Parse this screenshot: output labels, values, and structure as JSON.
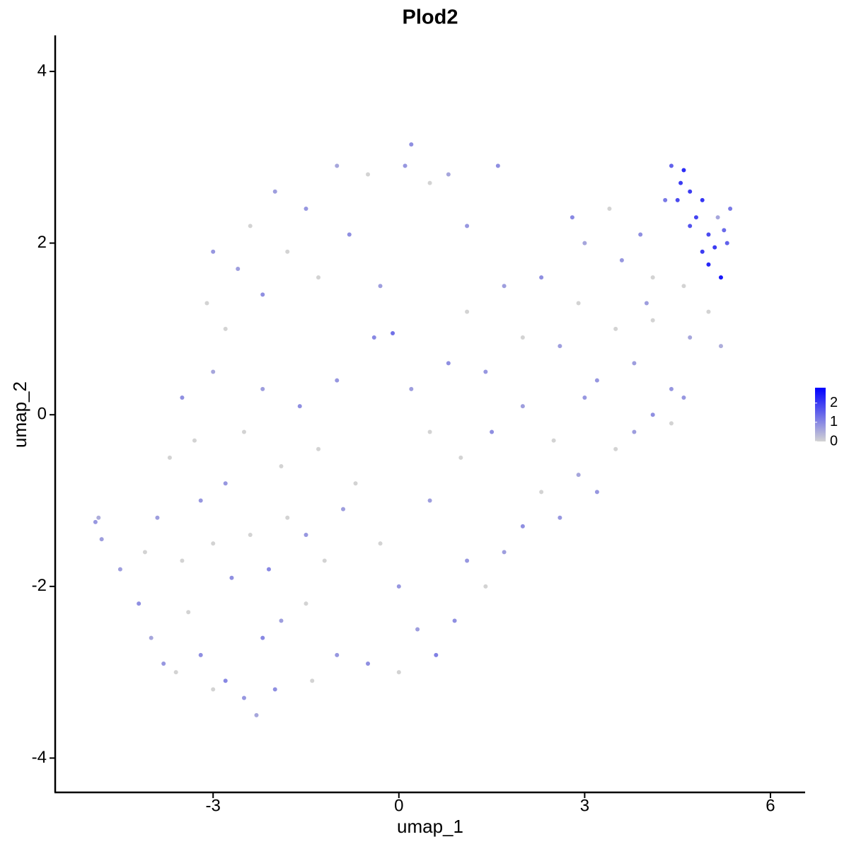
{
  "chart_data": {
    "type": "scatter",
    "title": "Plod2",
    "xlabel": "umap_1",
    "ylabel": "umap_2",
    "xlim": [
      -5.55,
      6.56
    ],
    "ylim": [
      -4.4,
      4.42
    ],
    "xticks": [
      -3,
      0,
      3,
      6
    ],
    "yticks": [
      -4,
      -2,
      0,
      2,
      4
    ],
    "colorbar": {
      "lim": [
        0,
        2.8
      ],
      "ticks": [
        0,
        1,
        2
      ],
      "low": "#d3d3d3",
      "high": "#0000ff"
    },
    "x": [
      -4.9,
      -4.85,
      -4.8,
      -4.5,
      -4.2,
      -4.0,
      -3.8,
      -3.6,
      -3.4,
      -3.2,
      -3.0,
      -2.8,
      -2.5,
      -2.3,
      -2.0,
      -2.2,
      -1.9,
      -1.5,
      -1.4,
      -1.0,
      -4.1,
      -3.9,
      -3.5,
      -3.2,
      -3.0,
      -2.7,
      -2.4,
      -2.1,
      -1.8,
      -1.5,
      -1.2,
      -0.9,
      -3.7,
      -3.5,
      -3.3,
      -3.0,
      -2.8,
      -2.5,
      -2.2,
      -1.9,
      -1.6,
      -1.3,
      -1.0,
      -0.7,
      -3.1,
      -3.0,
      -2.8,
      -2.6,
      -2.4,
      -2.2,
      -2.0,
      -1.8,
      -1.5,
      -1.3,
      -1.0,
      -0.8,
      -0.5,
      -0.3,
      0.1,
      0.2,
      0.5,
      0.8,
      1.1,
      1.6,
      -0.4,
      -0.1,
      0.2,
      0.5,
      0.8,
      1.1,
      1.4,
      1.7,
      2.0,
      2.3,
      2.6,
      2.9,
      3.2,
      3.5,
      3.8,
      4.1,
      4.4,
      4.7,
      5.0,
      5.2,
      -0.3,
      0.0,
      0.3,
      -0.5,
      0.0,
      0.6,
      0.9,
      1.1,
      1.4,
      1.7,
      2.0,
      2.3,
      2.6,
      2.9,
      3.2,
      3.5,
      3.8,
      4.1,
      4.4,
      4.6,
      0.5,
      1.0,
      1.5,
      2.0,
      2.5,
      3.0,
      2.8,
      3.0,
      3.4,
      3.6,
      3.9,
      4.1,
      4.3,
      4.4,
      4.5,
      4.6,
      4.7,
      4.8,
      4.9,
      5.0,
      4.9,
      5.0,
      5.1,
      5.2,
      5.3,
      5.35,
      4.7,
      5.25,
      4.55,
      5.15,
      4.0,
      4.6
    ],
    "y": [
      -1.25,
      -1.2,
      -1.45,
      -1.8,
      -2.2,
      -2.6,
      -2.9,
      -3.0,
      -2.3,
      -2.8,
      -3.2,
      -3.1,
      -3.3,
      -3.5,
      -3.2,
      -2.6,
      -2.4,
      -2.2,
      -3.1,
      -2.8,
      -1.6,
      -1.2,
      -1.7,
      -1.0,
      -1.5,
      -1.9,
      -1.4,
      -1.8,
      -1.2,
      -1.4,
      -1.7,
      -1.1,
      -0.5,
      0.2,
      -0.3,
      0.5,
      -0.8,
      -0.2,
      0.3,
      -0.6,
      0.1,
      -0.4,
      0.4,
      -0.8,
      1.3,
      1.9,
      1.0,
      1.7,
      2.2,
      1.4,
      2.6,
      1.9,
      2.4,
      1.6,
      2.9,
      2.1,
      2.8,
      1.5,
      2.9,
      3.15,
      2.7,
      2.8,
      2.2,
      2.9,
      0.9,
      0.95,
      0.3,
      -0.2,
      0.6,
      1.2,
      0.5,
      1.5,
      0.9,
      1.6,
      0.8,
      1.3,
      0.4,
      1.0,
      0.6,
      1.1,
      0.3,
      0.9,
      1.2,
      0.8,
      -1.5,
      -2.0,
      -2.5,
      -2.9,
      -3.0,
      -2.8,
      -2.4,
      -1.7,
      -2.0,
      -1.6,
      -1.3,
      -0.9,
      -1.2,
      -0.7,
      -0.9,
      -0.4,
      -0.2,
      0.0,
      -0.1,
      0.2,
      -1.0,
      -0.5,
      -0.2,
      0.1,
      -0.3,
      0.2,
      2.3,
      2.0,
      2.4,
      1.8,
      2.1,
      1.6,
      2.5,
      2.9,
      2.5,
      2.85,
      2.6,
      2.3,
      2.5,
      2.1,
      1.9,
      1.75,
      1.95,
      1.6,
      2.0,
      2.4,
      2.2,
      2.15,
      2.7,
      2.3,
      1.3,
      1.5
    ],
    "values": [
      0.8,
      0.5,
      0.7,
      0.7,
      0.9,
      0.6,
      0.8,
      0,
      0,
      0.9,
      0,
      1.0,
      0.8,
      0.6,
      0.9,
      1.0,
      0.7,
      0,
      0,
      0.8,
      0,
      0.7,
      0,
      0.8,
      0,
      0.9,
      0,
      1.0,
      0,
      0.8,
      0,
      0.7,
      0,
      0.9,
      0,
      0.6,
      0.8,
      0,
      0.7,
      0,
      0.9,
      0,
      0.8,
      0,
      0,
      0.8,
      0,
      0.7,
      0,
      0.9,
      0.7,
      0,
      0.8,
      0,
      0.6,
      0.9,
      0,
      0.7,
      0.8,
      0.9,
      0,
      0.6,
      0.8,
      0.9,
      1.0,
      1.3,
      0.7,
      0,
      0.9,
      0,
      0.8,
      0.7,
      0,
      0.9,
      0.7,
      0,
      0.8,
      0,
      0.7,
      0,
      0.8,
      0.6,
      0,
      0.5,
      0,
      0.8,
      0.7,
      0.9,
      0,
      1.1,
      0.9,
      0.8,
      0,
      0.7,
      0.9,
      0,
      0.8,
      0.6,
      0.8,
      0,
      0.7,
      0.9,
      0,
      0.8,
      0.7,
      0,
      0.9,
      0.7,
      0,
      0.8,
      1.0,
      0.6,
      0,
      0.8,
      0.9,
      0,
      1.2,
      1.5,
      1.8,
      2.2,
      2.0,
      1.9,
      2.1,
      1.8,
      2.0,
      2.3,
      2.0,
      2.5,
      1.5,
      1.2,
      1.7,
      1.4,
      2.0,
      0.6,
      0.7,
      0
    ]
  }
}
